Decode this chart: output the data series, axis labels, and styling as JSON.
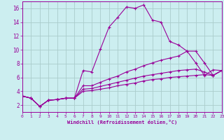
{
  "xlabel": "Windchill (Refroidissement éolien,°C)",
  "background_color": "#cceef0",
  "grid_color": "#aacccc",
  "line_color": "#990099",
  "xlim": [
    0,
    23
  ],
  "ylim": [
    1,
    17
  ],
  "yticks": [
    2,
    4,
    6,
    8,
    10,
    12,
    14,
    16
  ],
  "xticks": [
    0,
    1,
    2,
    3,
    4,
    5,
    6,
    7,
    8,
    9,
    10,
    11,
    12,
    13,
    14,
    15,
    16,
    17,
    18,
    19,
    20,
    21,
    22,
    23
  ],
  "x": [
    0,
    1,
    2,
    3,
    4,
    5,
    6,
    7,
    8,
    9,
    10,
    11,
    12,
    13,
    14,
    15,
    16,
    17,
    18,
    19,
    20,
    21,
    22,
    23
  ],
  "series": [
    [
      3.3,
      3.0,
      1.8,
      2.7,
      2.8,
      3.0,
      3.0,
      7.0,
      6.8,
      10.1,
      13.3,
      14.7,
      16.2,
      16.0,
      16.5,
      14.3,
      14.0,
      11.2,
      10.7,
      9.8,
      8.1,
      6.3,
      7.1,
      7.0
    ],
    [
      3.3,
      3.0,
      1.8,
      2.7,
      2.8,
      3.0,
      3.0,
      4.8,
      4.8,
      5.3,
      5.8,
      6.2,
      6.8,
      7.2,
      7.7,
      8.1,
      8.5,
      8.8,
      9.1,
      9.8,
      9.8,
      8.1,
      6.3,
      7.0
    ],
    [
      3.3,
      3.0,
      1.8,
      2.7,
      2.8,
      3.0,
      3.0,
      4.3,
      4.4,
      4.7,
      5.0,
      5.3,
      5.6,
      5.9,
      6.2,
      6.4,
      6.6,
      6.8,
      7.0,
      7.1,
      7.2,
      6.8,
      6.3,
      7.0
    ],
    [
      3.3,
      3.0,
      1.8,
      2.7,
      2.8,
      3.0,
      3.0,
      4.0,
      4.1,
      4.3,
      4.5,
      4.8,
      5.0,
      5.2,
      5.5,
      5.7,
      5.8,
      6.0,
      6.1,
      6.2,
      6.3,
      6.4,
      6.3,
      7.0
    ]
  ]
}
